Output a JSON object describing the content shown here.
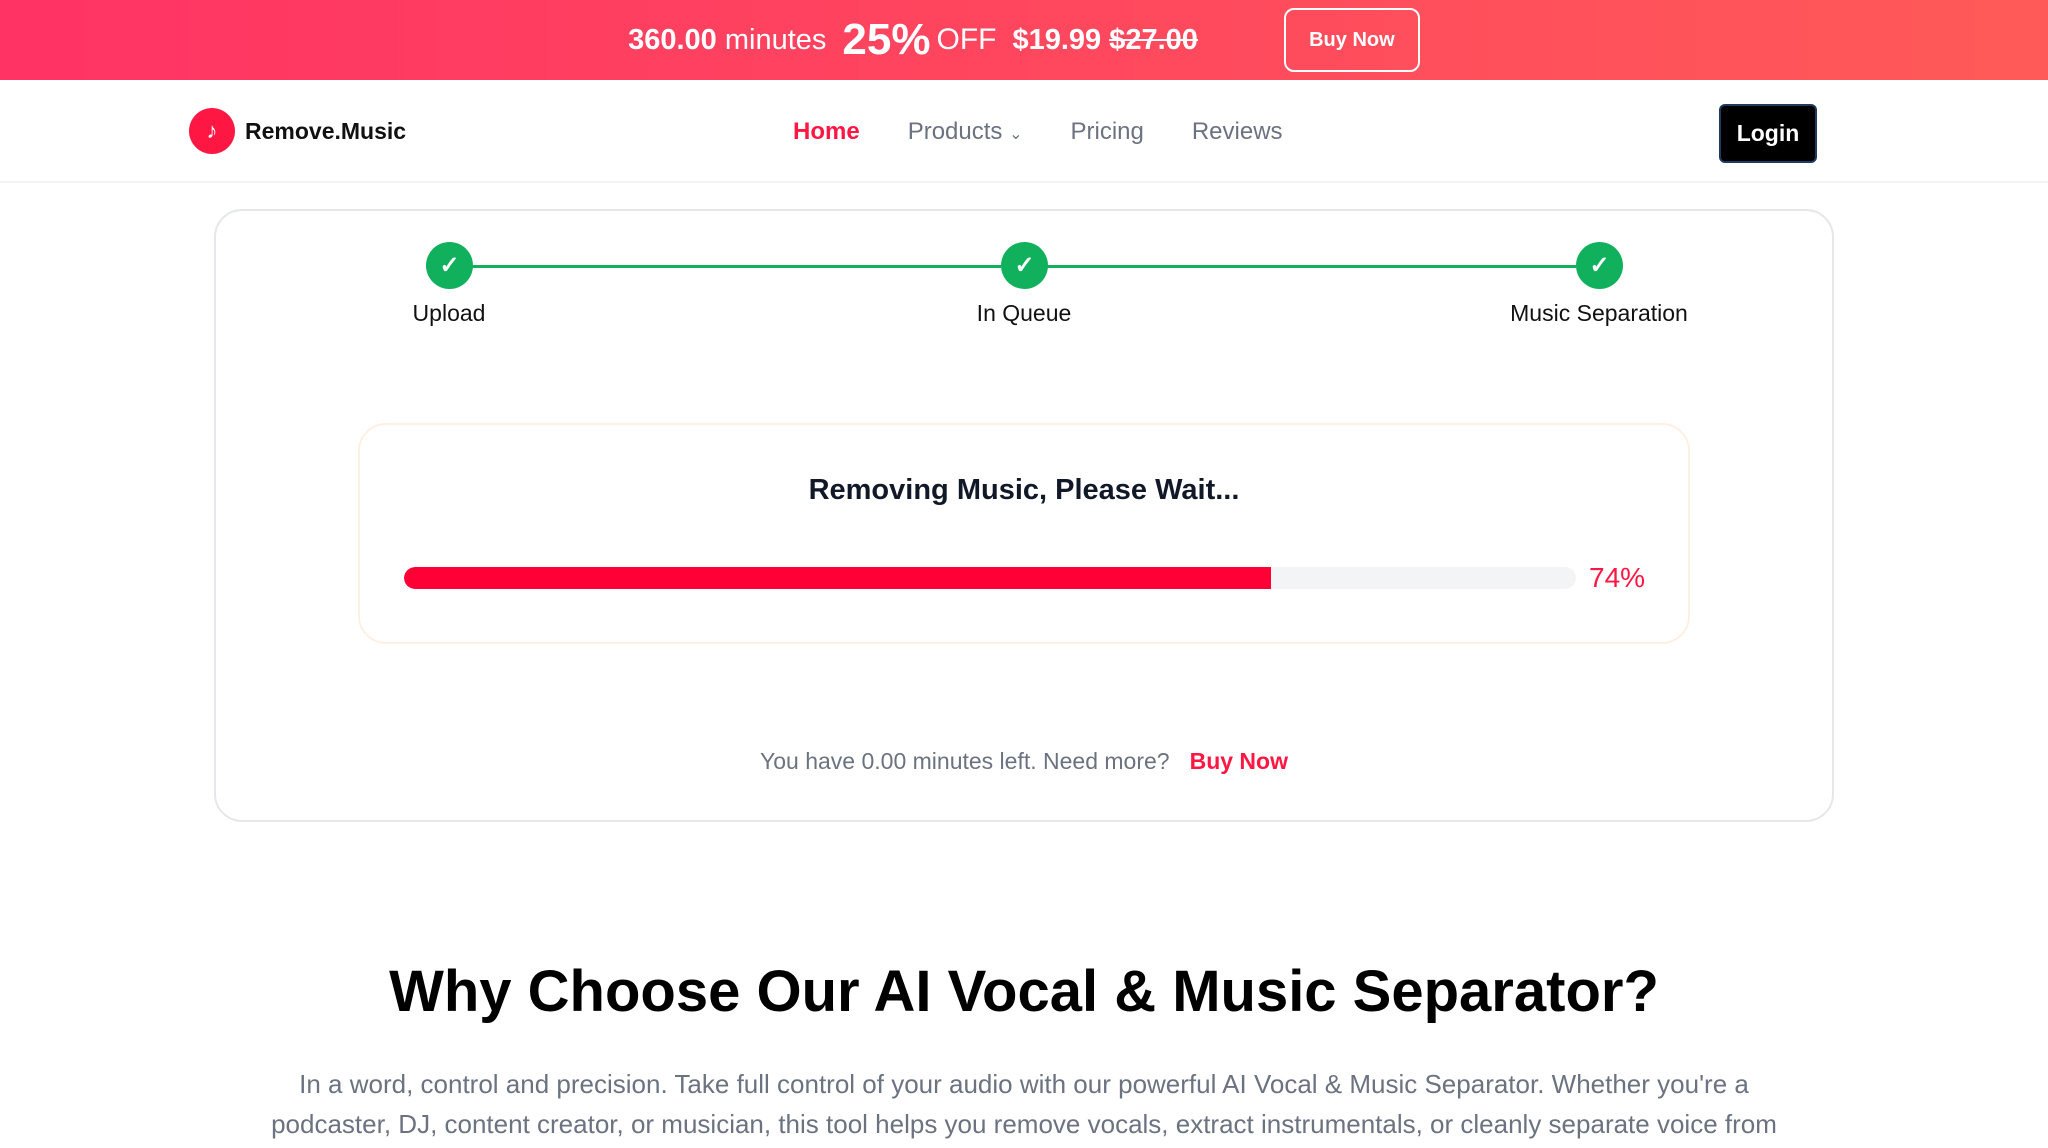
{
  "banner": {
    "minutes": "360.00",
    "minutes_unit": "minutes",
    "discount": "25%",
    "off": "OFF",
    "price": "$19.99",
    "old_price": "$27.00",
    "buy_label": "Buy Now"
  },
  "nav": {
    "brand": "Remove.Music",
    "items": [
      {
        "label": "Home",
        "active": true
      },
      {
        "label": "Products"
      },
      {
        "label": "Pricing"
      },
      {
        "label": "Reviews"
      }
    ],
    "login": "Login"
  },
  "steps": [
    {
      "label": "Upload",
      "done": true
    },
    {
      "label": "In Queue",
      "done": true
    },
    {
      "label": "Music Separation",
      "done": true
    }
  ],
  "progress": {
    "title": "Removing Music, Please Wait...",
    "percent": 74,
    "percent_label": "74%",
    "color": "#ff0036"
  },
  "minutes_left": {
    "text": "You have 0.00 minutes left. Need more?",
    "link": "Buy Now"
  },
  "why": {
    "heading": "Why Choose Our AI Vocal & Music Separator?",
    "line1": "In a word, control and precision. Take full control of your audio with our powerful AI Vocal & Music Separator. Whether you're a",
    "line2": "podcaster, DJ, content creator, or musician, this tool helps you remove vocals, extract instrumentals, or cleanly separate voice from"
  }
}
